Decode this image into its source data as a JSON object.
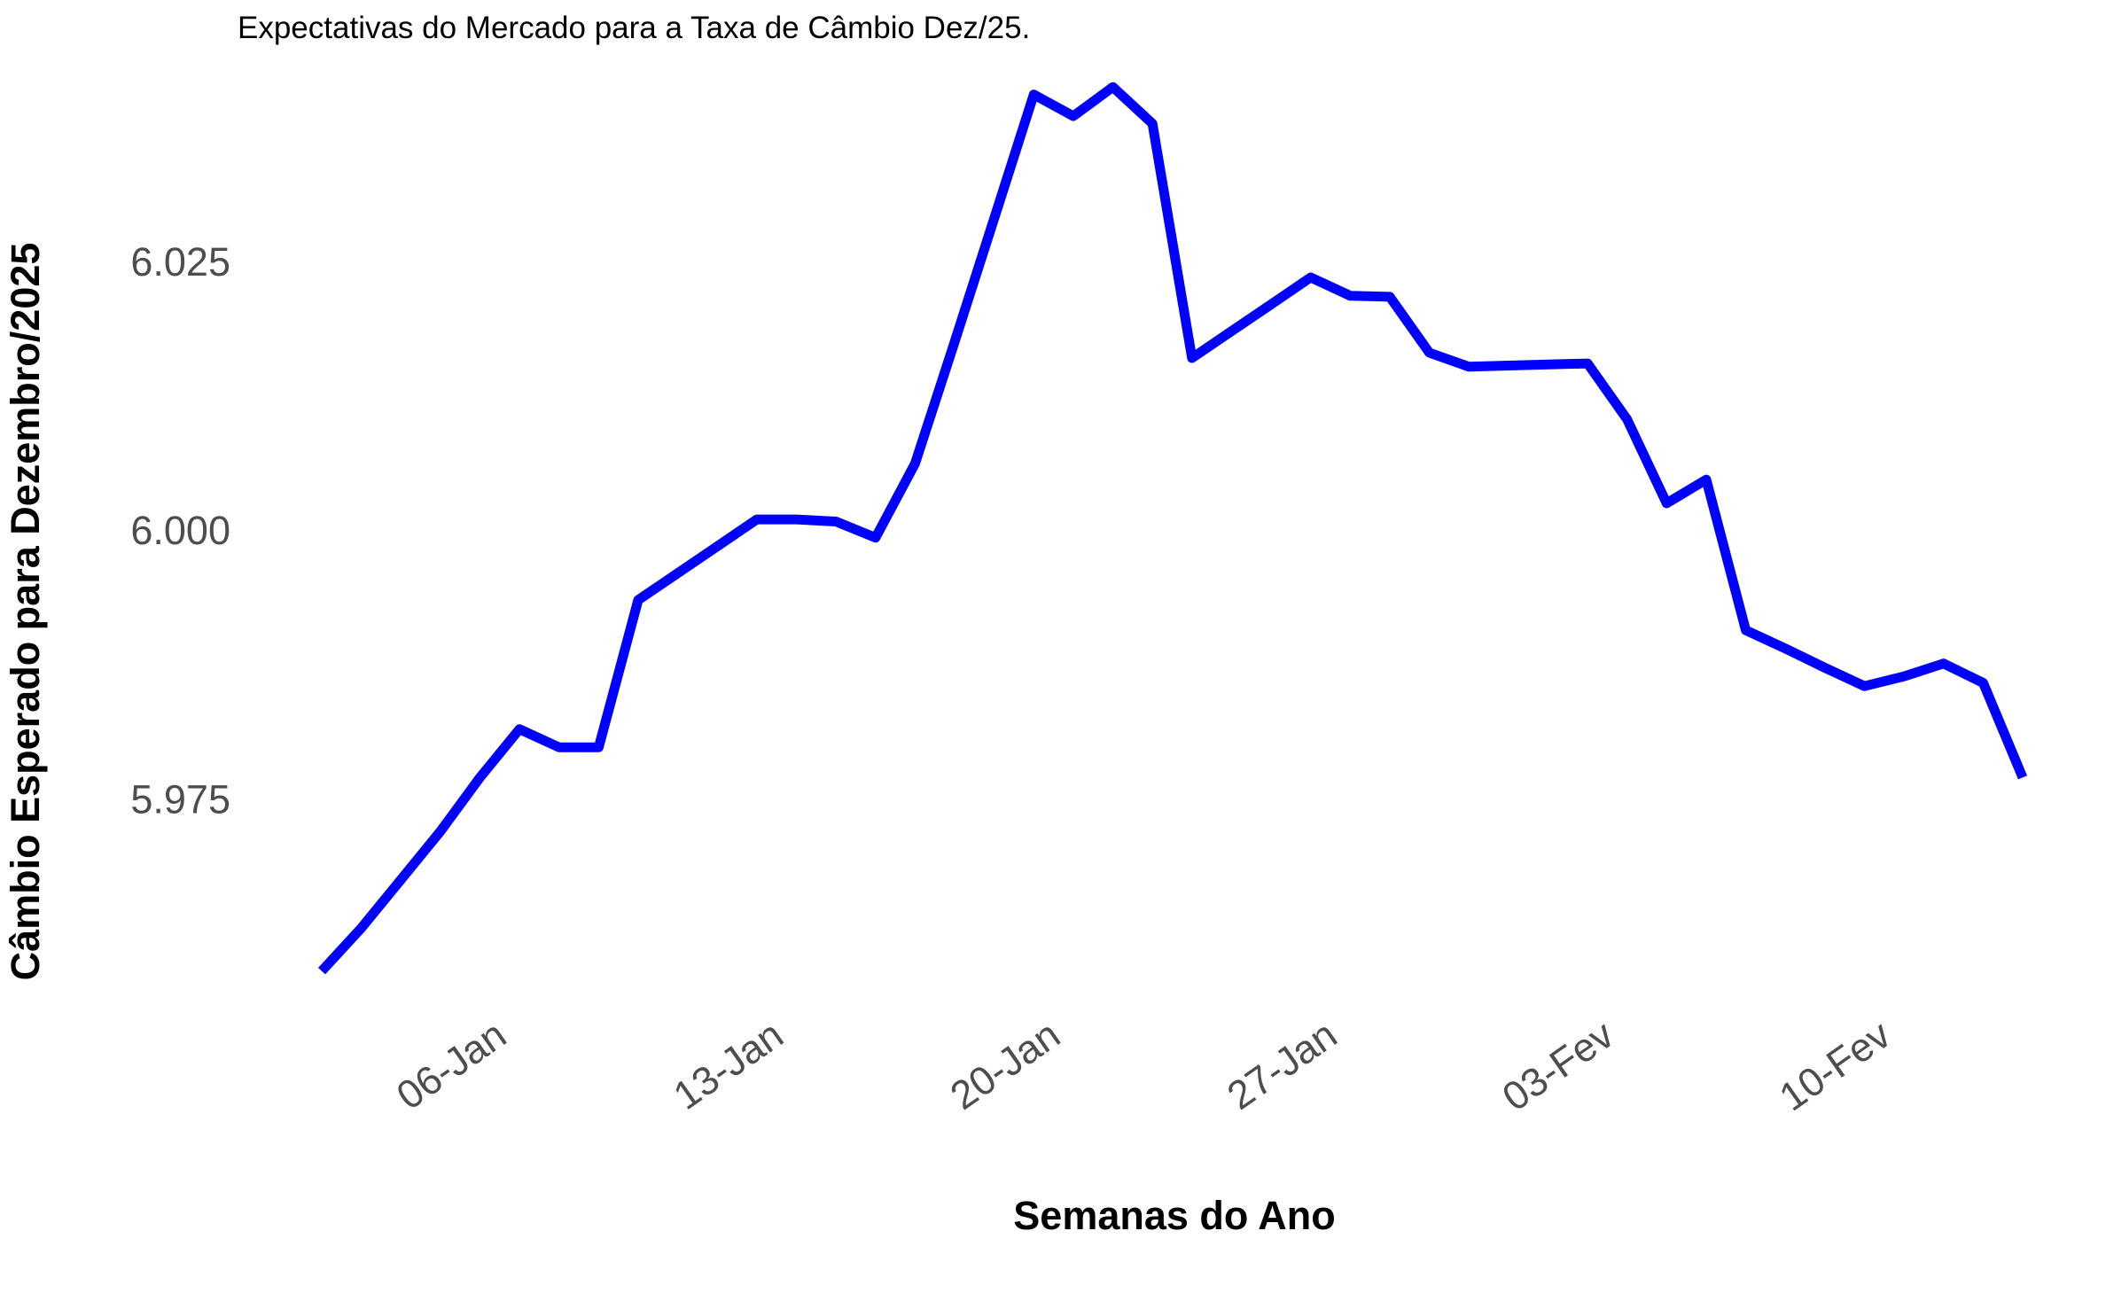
{
  "chart_data": {
    "type": "line",
    "title": "Expectativas do Mercado para a Taxa de Câmbio Dez/25.",
    "xlabel": "Semanas do Ano",
    "ylabel": "Câmbio Esperado para Dezembro/2025",
    "x_ticks": [
      "06-Jan",
      "13-Jan",
      "20-Jan",
      "27-Jan",
      "03-Fev",
      "10-Fev"
    ],
    "y_ticks": [
      "5.975",
      "6.000",
      "6.025"
    ],
    "ylim": [
      5.957,
      6.046
    ],
    "grid": false,
    "line_color": "#0000ff",
    "series": [
      {
        "x": [
          "2025-01-02",
          "2025-01-03",
          "2025-01-04",
          "2025-01-05",
          "2025-01-06",
          "2025-01-07",
          "2025-01-08",
          "2025-01-09",
          "2025-01-10",
          "2025-01-11",
          "2025-01-12",
          "2025-01-13",
          "2025-01-14",
          "2025-01-15",
          "2025-01-16",
          "2025-01-17",
          "2025-01-18",
          "2025-01-19",
          "2025-01-20",
          "2025-01-21",
          "2025-01-22",
          "2025-01-23",
          "2025-01-24",
          "2025-01-25",
          "2025-01-26",
          "2025-01-27",
          "2025-01-28",
          "2025-01-29",
          "2025-01-30",
          "2025-01-31",
          "2025-02-01",
          "2025-02-02",
          "2025-02-03",
          "2025-02-04",
          "2025-02-05",
          "2025-02-06",
          "2025-02-07",
          "2025-02-08",
          "2025-02-09",
          "2025-02-10",
          "2025-02-11",
          "2025-02-12",
          "2025-02-13",
          "2025-02-14"
        ],
        "values": [
          5.959,
          5.963,
          5.9675,
          5.972,
          5.977,
          5.9815,
          5.9798,
          5.9798,
          5.9935,
          5.996,
          5.9985,
          6.001,
          6.001,
          6.0008,
          5.9993,
          6.0062,
          6.0175,
          6.029,
          6.0405,
          6.0385,
          6.0412,
          6.0378,
          6.016,
          6.0185,
          6.021,
          6.0235,
          6.0218,
          6.0217,
          6.0165,
          6.0152,
          6.0153,
          6.0154,
          6.0155,
          6.0103,
          6.0025,
          6.0047,
          5.9907,
          5.989,
          5.9872,
          5.9855,
          5.9864,
          5.9876,
          5.9858,
          5.977
        ]
      }
    ]
  }
}
